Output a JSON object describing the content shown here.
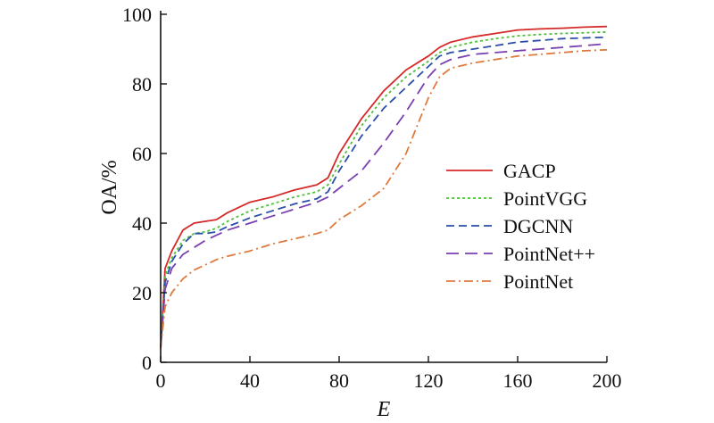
{
  "chart_data": {
    "type": "line",
    "title": "",
    "xlabel": "E",
    "ylabel": "OA/%",
    "xlim": [
      0,
      200
    ],
    "ylim": [
      0,
      100
    ],
    "xticks": [
      0,
      40,
      80,
      120,
      160,
      200
    ],
    "yticks": [
      0,
      20,
      40,
      60,
      80,
      100
    ],
    "grid": false,
    "legend_position": "right",
    "x": [
      0,
      2,
      5,
      10,
      15,
      20,
      25,
      30,
      40,
      50,
      60,
      70,
      75,
      80,
      90,
      100,
      110,
      120,
      125,
      130,
      140,
      150,
      160,
      170,
      180,
      190,
      200
    ],
    "series": [
      {
        "name": "GACP",
        "color": "#d62a2a",
        "dash": "solid",
        "values": [
          4,
          27,
          32,
          38,
          40,
          40.5,
          41,
          43,
          46,
          47.5,
          49.5,
          51,
          53,
          60,
          70,
          78,
          84,
          88,
          90.5,
          92,
          93.5,
          94.5,
          95.5,
          95.8,
          96,
          96.3,
          96.5
        ]
      },
      {
        "name": "PointVGG",
        "color": "#4fbf3a",
        "dash": "dotted",
        "values": [
          4,
          25,
          30,
          35,
          37,
          37.5,
          38.5,
          40.5,
          43.5,
          45.5,
          47.5,
          49,
          51,
          57,
          68,
          76,
          82,
          86.5,
          89,
          90.5,
          92,
          93,
          93.8,
          94.2,
          94.5,
          94.7,
          94.9
        ]
      },
      {
        "name": "DGCNN",
        "color": "#2a4fa8",
        "dash": "dashed",
        "values": [
          4,
          23,
          29,
          34,
          37,
          37,
          37.5,
          39,
          41.5,
          43.5,
          45.5,
          47,
          49,
          55,
          65,
          73,
          79,
          85,
          88,
          89,
          90,
          91,
          92,
          92.5,
          93,
          93.2,
          93.4
        ]
      },
      {
        "name": "PointNet++",
        "color": "#7a3fb0",
        "dash": "longdash",
        "values": [
          4,
          21,
          27,
          31,
          33,
          35,
          36.5,
          38,
          40,
          42,
          44,
          46,
          47.5,
          50,
          55,
          63,
          72,
          82,
          85.5,
          87,
          88.5,
          89,
          89.5,
          90,
          90.5,
          91,
          91.5
        ]
      },
      {
        "name": "PointNet",
        "color": "#e07a3c",
        "dash": "dashdot",
        "values": [
          4,
          16,
          20,
          24,
          26.5,
          28,
          29.5,
          30.5,
          32,
          34,
          35.5,
          37,
          38,
          41,
          45,
          50,
          60,
          76,
          82,
          84.5,
          86,
          87,
          88,
          88.5,
          89,
          89.5,
          89.8
        ]
      }
    ]
  }
}
